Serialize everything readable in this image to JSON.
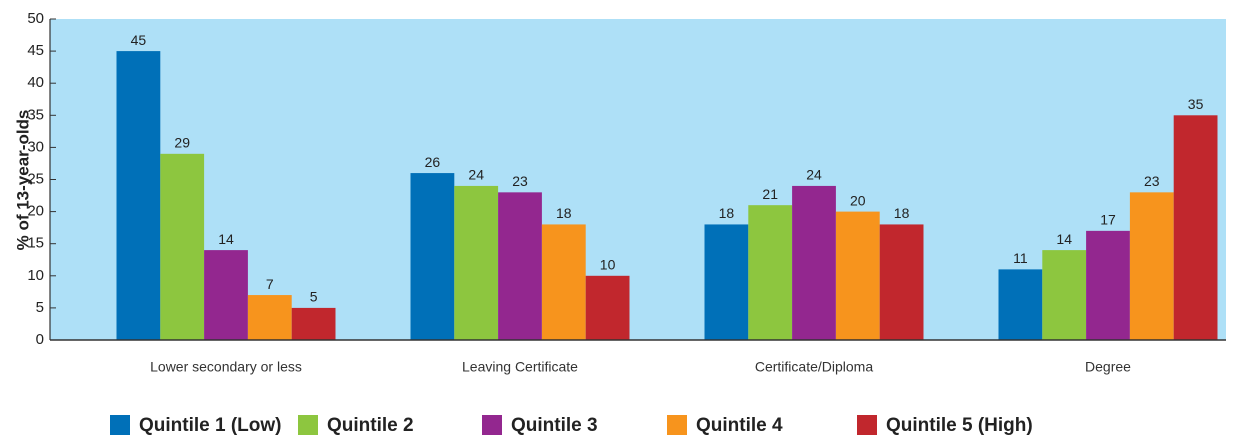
{
  "chart_data": {
    "type": "bar",
    "ylabel": "% of 13-year-olds",
    "categories": [
      "Lower secondary or less",
      "Leaving Certificate",
      "Certificate/Diploma",
      "Degree"
    ],
    "series": [
      {
        "name": "Quintile 1 (Low)",
        "color": "#0070b8",
        "values": [
          45,
          26,
          18,
          11
        ]
      },
      {
        "name": "Quintile 2",
        "color": "#8dc63f",
        "values": [
          29,
          24,
          21,
          14
        ]
      },
      {
        "name": "Quintile 3",
        "color": "#93278f",
        "values": [
          14,
          23,
          24,
          17
        ]
      },
      {
        "name": "Quintile 4",
        "color": "#f7941d",
        "values": [
          7,
          18,
          20,
          23
        ]
      },
      {
        "name": "Quintile 5 (High)",
        "color": "#c1272d",
        "values": [
          5,
          10,
          18,
          35
        ]
      }
    ],
    "ylim": [
      0,
      50
    ],
    "yticks": [
      0,
      5,
      10,
      15,
      20,
      25,
      30,
      35,
      40,
      45,
      50
    ],
    "legend": "bottom",
    "background": "#aee0f7"
  }
}
